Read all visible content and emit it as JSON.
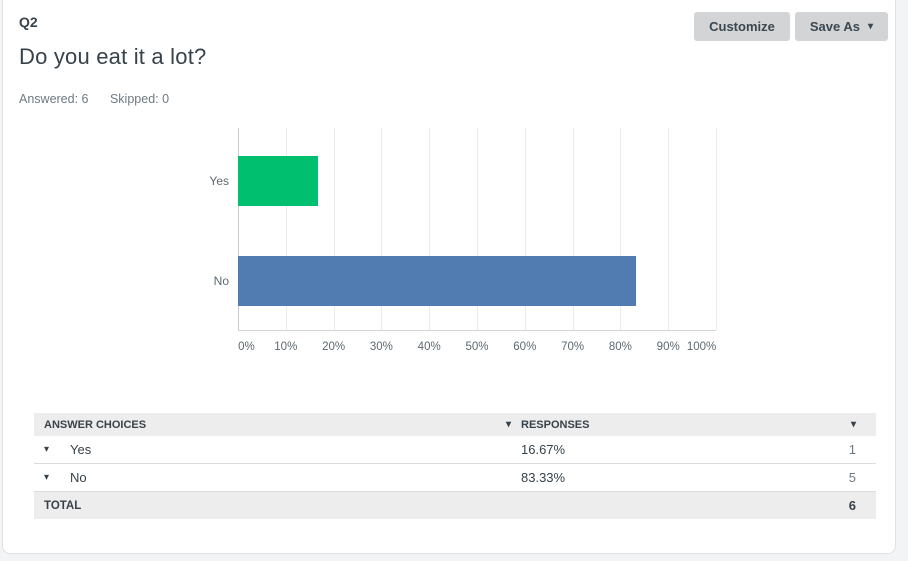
{
  "header": {
    "question_number": "Q2",
    "question_title": "Do you eat it a lot?",
    "answered": "Answered: 6",
    "skipped": "Skipped: 0"
  },
  "toolbar": {
    "customize_label": "Customize",
    "save_as_label": "Save As",
    "caret_glyph": "▾"
  },
  "chart_data": {
    "type": "bar",
    "orientation": "horizontal",
    "categories": [
      "Yes",
      "No"
    ],
    "values": [
      16.67,
      83.33
    ],
    "bar_colors": [
      "#00BF6F",
      "#507CB2"
    ],
    "x_ticks": [
      "0%",
      "10%",
      "20%",
      "30%",
      "40%",
      "50%",
      "60%",
      "70%",
      "80%",
      "90%",
      "100%"
    ],
    "xlim": [
      0,
      100
    ],
    "grid": "vertical",
    "legend": "none",
    "title": "",
    "xlabel": "",
    "ylabel": ""
  },
  "table": {
    "columns": [
      {
        "label": "ANSWER CHOICES"
      },
      {
        "label": "RESPONSES"
      }
    ],
    "caret_glyph": "▾",
    "rows": [
      {
        "choice": "Yes",
        "percent": "16.67%",
        "count": "1"
      },
      {
        "choice": "No",
        "percent": "83.33%",
        "count": "5"
      }
    ],
    "total_label": "TOTAL",
    "total_count": "6"
  },
  "colors": {
    "bar_yes": "#00BF6F",
    "bar_no": "#507CB2",
    "button_bg": "#d3d4d5",
    "table_header_bg": "#ededee",
    "text_dark": "#37424A",
    "text_muted": "#6e7a82"
  }
}
